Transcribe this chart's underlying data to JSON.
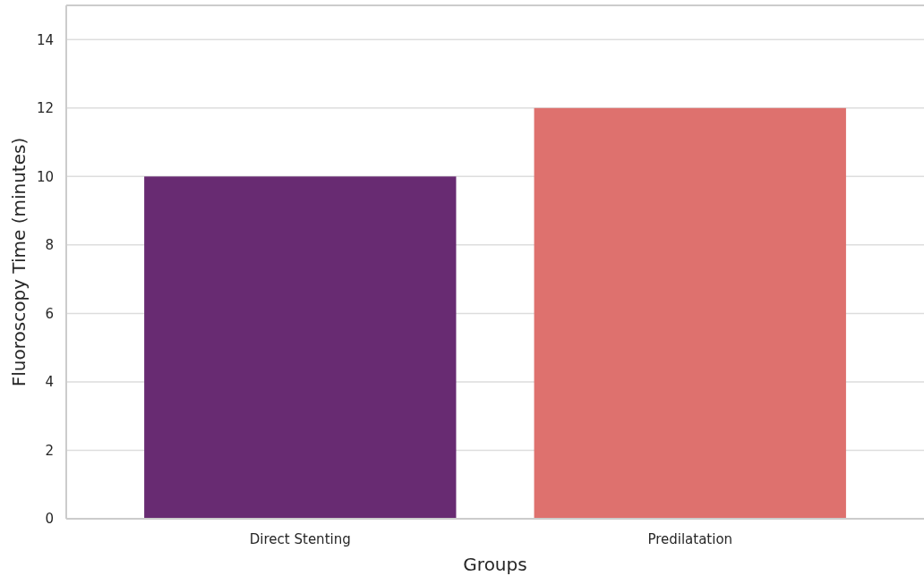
{
  "chart_data": {
    "type": "bar",
    "xlabel": "Groups",
    "ylabel": "Fluoroscopy Time (minutes)",
    "categories": [
      "Direct Stenting",
      "Predilatation"
    ],
    "values": [
      10,
      12
    ],
    "colors": [
      "#682b72",
      "#de716e"
    ],
    "ylim": [
      0,
      15
    ],
    "yticks": [
      0,
      2,
      4,
      6,
      8,
      10,
      12,
      14
    ],
    "grid": "y"
  }
}
